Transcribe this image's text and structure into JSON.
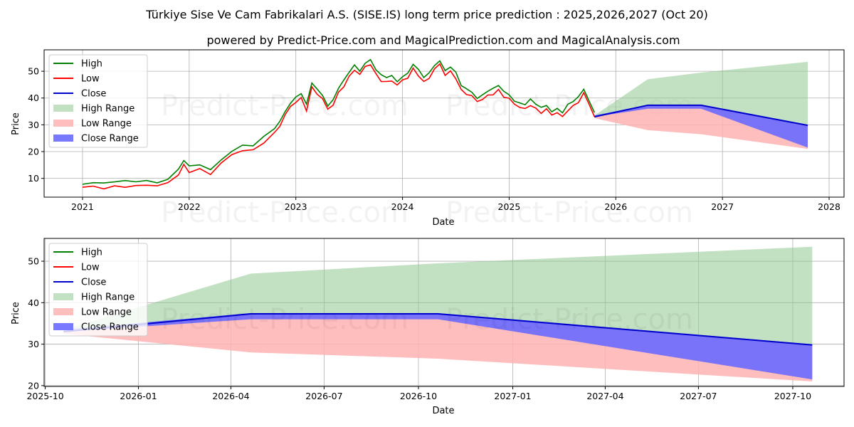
{
  "title": "Türkiye Sise Ve Cam Fabrikalari A.S. (SISE.IS) long term price prediction : 2025,2026,2027 (Oct 20)",
  "subtitle": "powered by Predict-Price.com and MagicalPrediction.com and MagicalAnalysis.com",
  "watermark": "Predict-Price.com",
  "colors": {
    "high": "#008000",
    "low": "#ff0000",
    "close": "#0000cd",
    "high_range": "#90c990",
    "low_range": "#ffb3b3",
    "close_range": "#6a6aff"
  },
  "legend": [
    "High",
    "Low",
    "Close",
    "High Range",
    "Low Range",
    "Close Range"
  ],
  "chart_data": [
    {
      "type": "line",
      "name": "long-term",
      "xlabel": "Date",
      "ylabel": "Price",
      "xlim": [
        2020.64,
        2028.14
      ],
      "ylim": [
        3,
        58
      ],
      "xticks": [
        2021,
        2022,
        2023,
        2024,
        2025,
        2026,
        2027,
        2028
      ],
      "xtick_labels": [
        "2021",
        "2022",
        "2023",
        "2024",
        "2025",
        "2026",
        "2027",
        "2028"
      ],
      "yticks": [
        10,
        20,
        30,
        40,
        50
      ],
      "ytick_labels": [
        "10",
        "20",
        "30",
        "40",
        "50"
      ],
      "grid": true,
      "legend_position": "top-left",
      "history": {
        "x": [
          2021.0,
          2021.1,
          2021.2,
          2021.3,
          2021.4,
          2021.5,
          2021.6,
          2021.7,
          2021.8,
          2021.9,
          2021.95,
          2022.0,
          2022.1,
          2022.2,
          2022.3,
          2022.4,
          2022.5,
          2022.6,
          2022.7,
          2022.8,
          2022.85,
          2022.9,
          2022.95,
          2023.0,
          2023.05,
          2023.1,
          2023.15,
          2023.2,
          2023.25,
          2023.3,
          2023.35,
          2023.4,
          2023.45,
          2023.5,
          2023.55,
          2023.6,
          2023.65,
          2023.7,
          2023.75,
          2023.8,
          2023.85,
          2023.9,
          2023.95,
          2024.0,
          2024.05,
          2024.1,
          2024.15,
          2024.2,
          2024.25,
          2024.3,
          2024.35,
          2024.4,
          2024.45,
          2024.5,
          2024.55,
          2024.6,
          2024.65,
          2024.7,
          2024.75,
          2024.8,
          2024.85,
          2024.9,
          2024.95,
          2025.0,
          2025.05,
          2025.1,
          2025.15,
          2025.2,
          2025.25,
          2025.3,
          2025.35,
          2025.4,
          2025.45,
          2025.5,
          2025.55,
          2025.6,
          2025.65,
          2025.7,
          2025.75,
          2025.8
        ],
        "close": [
          7.0,
          7.2,
          6.8,
          7.0,
          7.5,
          7.2,
          8.0,
          7.5,
          8.5,
          12.0,
          15.0,
          13.0,
          13.5,
          12.0,
          16.0,
          19.0,
          21.0,
          20.5,
          24.0,
          27.0,
          30.0,
          34.0,
          37.0,
          39.0,
          40.0,
          36.0,
          44.0,
          42.0,
          40.0,
          36.0,
          38.0,
          42.0,
          45.0,
          48.0,
          51.0,
          49.0,
          52.0,
          53.0,
          49.0,
          47.0,
          46.0,
          47.0,
          45.0,
          47.0,
          48.0,
          51.0,
          49.0,
          46.0,
          48.0,
          51.0,
          53.0,
          49.0,
          50.0,
          48.0,
          43.0,
          42.0,
          41.0,
          39.0,
          40.0,
          41.0,
          42.0,
          43.0,
          41.0,
          40.0,
          38.0,
          37.0,
          36.0,
          38.0,
          36.0,
          35.0,
          36.0,
          34.0,
          35.0,
          33.0,
          36.0,
          37.0,
          39.0,
          42.0,
          38.0,
          33.5
        ]
      },
      "forecast": {
        "x": [
          2025.8,
          2026.3,
          2026.8,
          2027.8
        ],
        "high": [
          33.5,
          47.0,
          49.5,
          53.5
        ],
        "low": [
          32.5,
          28.0,
          26.5,
          21.0
        ],
        "close_upper": [
          33.5,
          37.5,
          37.5,
          30.0
        ],
        "close_lower": [
          33.0,
          36.0,
          36.0,
          21.5
        ],
        "close": [
          33.0,
          37.3,
          37.3,
          29.8
        ]
      }
    },
    {
      "type": "area",
      "name": "forecast-zoom",
      "xlabel": "Date",
      "ylabel": "Price",
      "xlim": [
        2025.748,
        2027.885
      ],
      "ylim": [
        19.8,
        55.5
      ],
      "xticks": [
        2025.751,
        2026.0,
        2026.247,
        2026.496,
        2026.748,
        2027.0,
        2027.247,
        2027.496,
        2027.748
      ],
      "xtick_labels": [
        "2025-10",
        "2026-01",
        "2026-04",
        "2026-07",
        "2026-10",
        "2027-01",
        "2027-04",
        "2027-07",
        "2027-10"
      ],
      "yticks": [
        20,
        30,
        40,
        50
      ],
      "ytick_labels": [
        "20",
        "30",
        "40",
        "50"
      ],
      "grid": true,
      "legend_position": "top-left",
      "forecast": {
        "x": [
          2025.8,
          2026.3,
          2026.8,
          2027.8
        ],
        "high": [
          33.5,
          47.0,
          49.5,
          53.5
        ],
        "low": [
          32.5,
          28.0,
          26.5,
          21.0
        ],
        "close_upper": [
          33.5,
          37.5,
          37.5,
          30.0
        ],
        "close_lower": [
          33.0,
          36.0,
          36.0,
          21.5
        ],
        "close": [
          33.0,
          37.3,
          37.3,
          29.8
        ]
      }
    }
  ]
}
